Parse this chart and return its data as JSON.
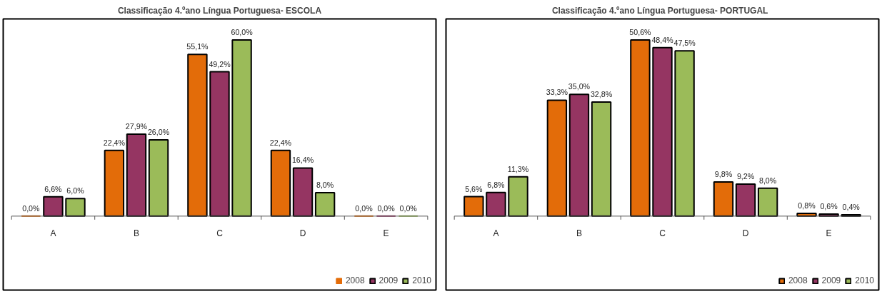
{
  "chart_data": [
    {
      "type": "bar",
      "title": "Classificação 4.ºano Língua Portuguesa- ESCOLA",
      "categories": [
        "A",
        "B",
        "C",
        "D",
        "E"
      ],
      "legend": "bottom right",
      "series": [
        {
          "name": "2008",
          "color": "#e36c09",
          "values": [
            0.0,
            22.4,
            55.1,
            22.4,
            0.0
          ],
          "value_labels": [
            "0,0%",
            "22,4%",
            "55,1%",
            "22,4%",
            "0,0%"
          ]
        },
        {
          "name": "2009",
          "color": "#953562",
          "values": [
            6.6,
            27.9,
            49.2,
            16.4,
            0.0
          ],
          "value_labels": [
            "6,6%",
            "27,9%",
            "49,2%",
            "16,4%",
            "0,0%"
          ]
        },
        {
          "name": "2010",
          "color": "#9bbb59",
          "values": [
            6.0,
            26.0,
            60.0,
            8.0,
            0.0
          ],
          "value_labels": [
            "6,0%",
            "26,0%",
            "60,0%",
            "8,0%",
            "0,0%"
          ]
        }
      ]
    },
    {
      "type": "bar",
      "title": "Classificação 4.ºano Língua Portuguesa-   PORTUGAL",
      "categories": [
        "A",
        "B",
        "C",
        "D",
        "E"
      ],
      "legend": "bottom right",
      "series": [
        {
          "name": "2008",
          "color": "#e36c09",
          "values": [
            5.6,
            33.3,
            50.6,
            9.8,
            0.8
          ],
          "value_labels": [
            "5,6%",
            "33,3%",
            "50,6%",
            "9,8%",
            "0,8%"
          ]
        },
        {
          "name": "2009",
          "color": "#953562",
          "values": [
            6.8,
            35.0,
            48.4,
            9.2,
            0.6
          ],
          "value_labels": [
            "6,8%",
            "35,0%",
            "48,4%",
            "9,2%",
            "0,6%"
          ]
        },
        {
          "name": "2010",
          "color": "#9bbb59",
          "values": [
            11.3,
            32.8,
            47.5,
            8.0,
            0.4
          ],
          "value_labels": [
            "11,3%",
            "32,8%",
            "47,5%",
            "8,0%",
            "0,4%"
          ]
        }
      ]
    }
  ]
}
